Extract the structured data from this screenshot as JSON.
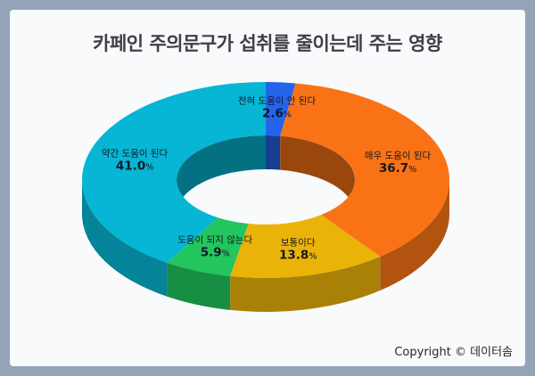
{
  "chart_data": {
    "type": "pie",
    "title": "카페인 주의문구가 섭취를 줄이는데 주는 영향",
    "slices": [
      {
        "label": "전혀 도움이 안 된다",
        "value": 2.6,
        "display": "2.6",
        "unit": "%",
        "color": "#2563eb"
      },
      {
        "label": "매우 도움이 된다",
        "value": 36.7,
        "display": "36.7",
        "unit": "%",
        "color": "#f97316"
      },
      {
        "label": "보통이다",
        "value": 13.8,
        "display": "13.8",
        "unit": "%",
        "color": "#eab308"
      },
      {
        "label": "도움이 되지 않는다",
        "value": 5.9,
        "display": "5.9",
        "unit": "%",
        "color": "#22c55e"
      },
      {
        "label": "약간 도움이 된다",
        "value": 41.0,
        "display": "41.0",
        "unit": "%",
        "color": "#06b6d4"
      }
    ]
  },
  "footer": {
    "credit": "Copyright © 데이터솜"
  }
}
